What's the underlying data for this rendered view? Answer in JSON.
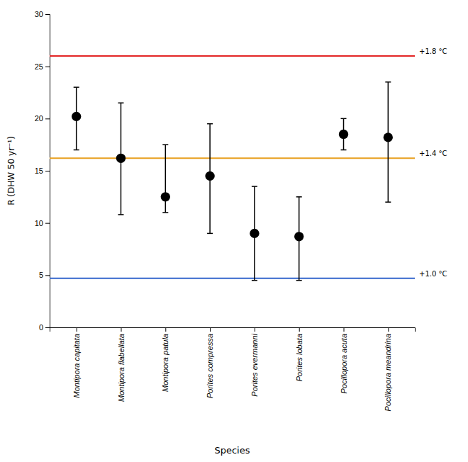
{
  "chart_data": {
    "type": "errorbar",
    "categories": [
      "Montipora capitata",
      "Montipora flabellata",
      "Montipora patula",
      "Porites compressa",
      "Porites evermanni",
      "Porites lobata",
      "Pocillopora acuta",
      "Pocillopora meandrina"
    ],
    "values": [
      20.2,
      16.2,
      12.5,
      14.5,
      9.0,
      8.7,
      18.5,
      18.2
    ],
    "lower": [
      17.0,
      10.8,
      11.0,
      9.0,
      4.5,
      4.5,
      17.0,
      12.0
    ],
    "upper": [
      23.0,
      21.5,
      17.5,
      19.5,
      13.5,
      12.5,
      20.0,
      23.5
    ],
    "reference_lines": [
      {
        "y": 26.0,
        "color": "#e32525",
        "label": "+1.8 °C"
      },
      {
        "y": 16.2,
        "color": "#e8a020",
        "label": "+1.4 °C"
      },
      {
        "y": 4.7,
        "color": "#3366cc",
        "label": "+1.0 °C"
      }
    ],
    "xlabel": "Species",
    "ylabel": "R (DHW 50 yr⁻¹)",
    "ylim": [
      0,
      30
    ],
    "yticks": [
      0,
      5,
      10,
      15,
      20,
      25,
      30
    ],
    "color": "black",
    "marker": "circle",
    "grid": false
  }
}
